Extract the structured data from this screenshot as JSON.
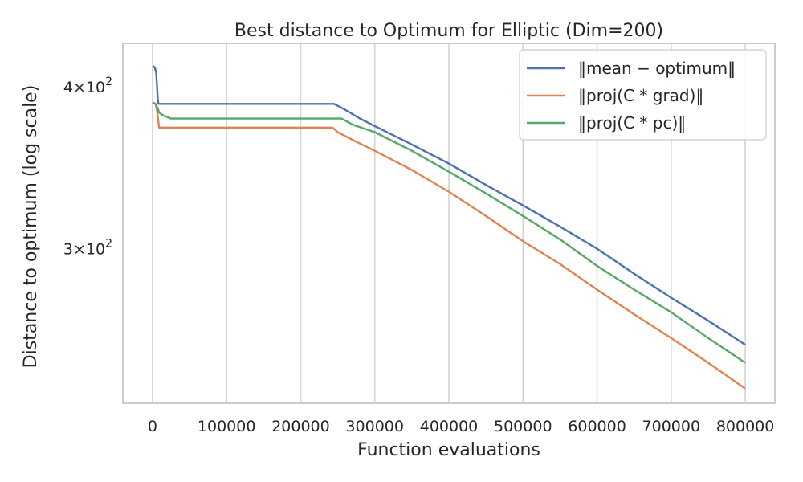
{
  "chart_data": {
    "type": "line",
    "title": "Best distance to Optimum for Elliptic (Dim=200)",
    "xlabel": "Function evaluations",
    "ylabel": "Distance to optimum (log scale)",
    "yscale": "log",
    "xlim": [
      -40000,
      840000
    ],
    "ylim": [
      228,
      432
    ],
    "grid": "vertical",
    "legend": "top-right",
    "x_ticks": [
      0,
      100000,
      200000,
      300000,
      400000,
      500000,
      600000,
      700000,
      800000
    ],
    "x_tick_labels": [
      "0",
      "100000",
      "200000",
      "300000",
      "400000",
      "500000",
      "600000",
      "700000",
      "800000"
    ],
    "y_ticks": [
      {
        "value": 400,
        "mantissa": "4",
        "base": "10",
        "exponent": "2"
      },
      {
        "value": 300,
        "mantissa": "3",
        "base": "10",
        "exponent": "2"
      }
    ],
    "series": [
      {
        "name": "‖mean − optimum‖",
        "color": "#4c72b0",
        "points": [
          [
            0,
            415
          ],
          [
            3000,
            414
          ],
          [
            5000,
            410
          ],
          [
            7000,
            392
          ],
          [
            8000,
            388
          ],
          [
            50000,
            388
          ],
          [
            100000,
            388
          ],
          [
            150000,
            388
          ],
          [
            200000,
            388
          ],
          [
            245000,
            388
          ],
          [
            260000,
            384
          ],
          [
            280000,
            378
          ],
          [
            300000,
            373
          ],
          [
            350000,
            361
          ],
          [
            400000,
            349
          ],
          [
            450000,
            336
          ],
          [
            500000,
            324
          ],
          [
            550000,
            312
          ],
          [
            600000,
            300
          ],
          [
            650000,
            287
          ],
          [
            700000,
            275
          ],
          [
            750000,
            264
          ],
          [
            800000,
            253
          ]
        ]
      },
      {
        "name": "‖proj(C * grad)‖",
        "color": "#dd8452",
        "points": [
          [
            0,
            389
          ],
          [
            4000,
            388
          ],
          [
            6000,
            384
          ],
          [
            9000,
            372
          ],
          [
            50000,
            372
          ],
          [
            100000,
            372
          ],
          [
            150000,
            372
          ],
          [
            200000,
            372
          ],
          [
            243000,
            372
          ],
          [
            250000,
            369
          ],
          [
            270000,
            364
          ],
          [
            300000,
            357
          ],
          [
            350000,
            345
          ],
          [
            400000,
            332
          ],
          [
            450000,
            318
          ],
          [
            500000,
            304
          ],
          [
            550000,
            292
          ],
          [
            600000,
            279
          ],
          [
            650000,
            267
          ],
          [
            700000,
            256
          ],
          [
            750000,
            245
          ],
          [
            800000,
            234
          ]
        ]
      },
      {
        "name": "‖proj(C * pc)‖",
        "color": "#55a868",
        "points": [
          [
            0,
            389
          ],
          [
            4000,
            388
          ],
          [
            7000,
            385
          ],
          [
            9000,
            382
          ],
          [
            15000,
            380
          ],
          [
            25000,
            378
          ],
          [
            50000,
            378
          ],
          [
            100000,
            378
          ],
          [
            150000,
            378
          ],
          [
            200000,
            378
          ],
          [
            255000,
            378
          ],
          [
            270000,
            374
          ],
          [
            300000,
            369
          ],
          [
            350000,
            357
          ],
          [
            400000,
            344
          ],
          [
            450000,
            331
          ],
          [
            500000,
            318
          ],
          [
            550000,
            305
          ],
          [
            600000,
            291
          ],
          [
            650000,
            279
          ],
          [
            700000,
            268
          ],
          [
            750000,
            256
          ],
          [
            800000,
            245
          ]
        ]
      }
    ]
  }
}
